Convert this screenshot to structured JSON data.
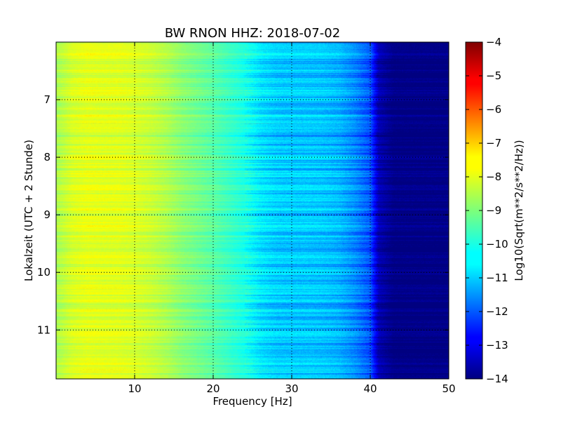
{
  "chart_data": {
    "type": "heatmap",
    "title": "BW RNON HHZ: 2018-07-02",
    "xlabel": "Frequency [Hz]",
    "ylabel": "Lokalzeit (UTC + 2 Stunde)",
    "xlim": [
      0,
      50
    ],
    "ylim": [
      11.85,
      6.0
    ],
    "x_ticks": [
      10,
      20,
      30,
      40,
      50
    ],
    "y_ticks": [
      7,
      8,
      9,
      10,
      11
    ],
    "grid": true,
    "colormap": "jet",
    "colorbar": {
      "label": "Log10(Sqrt(m**2/s**2/Hz))",
      "range": [
        -14,
        -4
      ],
      "ticks": [
        -4,
        -5,
        -6,
        -7,
        -8,
        -9,
        -10,
        -11,
        -12,
        -13,
        -14
      ]
    },
    "profile": {
      "frequency_hz": [
        0,
        2,
        4,
        6,
        8,
        10,
        12,
        14,
        16,
        18,
        20,
        22,
        24,
        26,
        28,
        30,
        32,
        34,
        36,
        38,
        40,
        41,
        43,
        46,
        50
      ],
      "log10_amplitude": [
        -8.6,
        -8.15,
        -8.0,
        -8.05,
        -8.05,
        -8.15,
        -8.3,
        -8.55,
        -8.9,
        -9.15,
        -9.4,
        -9.7,
        -10.0,
        -10.5,
        -10.75,
        -10.8,
        -10.8,
        -10.85,
        -11.0,
        -11.4,
        -12.0,
        -13.5,
        -14.0,
        -14.0,
        -14.0
      ]
    }
  }
}
